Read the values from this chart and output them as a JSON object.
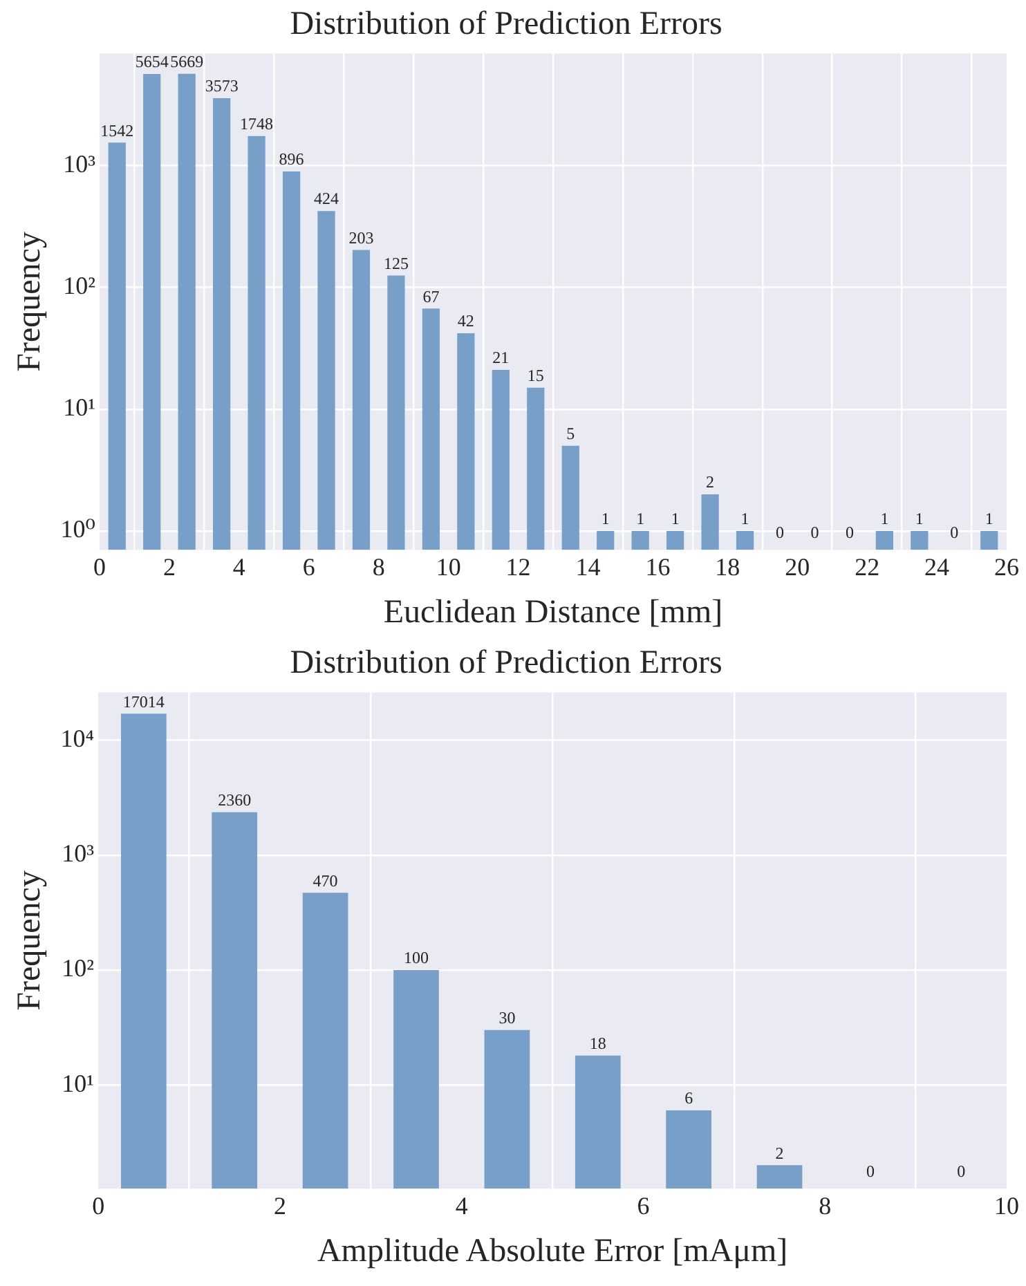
{
  "chart_data": [
    {
      "type": "histogram",
      "title": "Distribution of Prediction Errors",
      "xlabel": "Euclidean Distance [mm]",
      "ylabel": "Frequency",
      "bins": [
        0,
        1,
        2,
        3,
        4,
        5,
        6,
        7,
        8,
        9,
        10,
        11,
        12,
        13,
        14,
        15,
        16,
        17,
        18,
        19,
        20,
        21,
        22,
        23,
        24,
        25,
        26
      ],
      "values": [
        1542,
        5654,
        5669,
        3573,
        1748,
        896,
        424,
        203,
        125,
        67,
        42,
        21,
        15,
        5,
        1,
        1,
        1,
        2,
        1,
        null,
        null,
        null,
        1,
        1,
        null,
        1
      ],
      "value_labels": [
        "1542",
        "5654",
        "5669",
        "3573",
        "1748",
        "896",
        "424",
        "203",
        "125",
        "67",
        "42",
        "21",
        "15",
        "5",
        "1",
        "1",
        "1",
        "2",
        "1",
        "0",
        "0",
        "0",
        "1",
        "1",
        "0",
        "1"
      ],
      "color": "#779fc8",
      "log": "y",
      "grid": true,
      "xlim": [
        0,
        26
      ],
      "xticks": [
        0,
        2,
        4,
        6,
        8,
        10,
        12,
        14,
        16,
        18,
        20,
        22,
        24,
        26
      ],
      "ylim": [
        0.71,
        8300
      ],
      "yticks": [
        {
          "value": 1,
          "label": "10⁰"
        },
        {
          "value": 10,
          "label": "10¹"
        },
        {
          "value": 100,
          "label": "10²"
        },
        {
          "value": 1000,
          "label": "10³"
        }
      ]
    },
    {
      "type": "histogram",
      "title": "Distribution of Prediction Errors",
      "xlabel": "Amplitude Absolute Error [mAμm]",
      "ylabel": "Frequency",
      "bins": [
        0,
        1,
        2,
        3,
        4,
        5,
        6,
        7,
        8,
        9,
        10
      ],
      "values": [
        17014,
        2360,
        470,
        100,
        30,
        18,
        6,
        2,
        null,
        null
      ],
      "value_labels": [
        "17014",
        "2360",
        "470",
        "100",
        "30",
        "18",
        "6",
        "2",
        "0",
        "0"
      ],
      "color": "#779fc8",
      "log": "y",
      "grid": true,
      "xlim": [
        0,
        10
      ],
      "xticks": [
        0,
        2,
        4,
        6,
        8,
        10
      ],
      "ylim": [
        1.25,
        26000
      ],
      "yticks": [
        {
          "value": 10,
          "label": "10¹"
        },
        {
          "value": 100,
          "label": "10²"
        },
        {
          "value": 1000,
          "label": "10³"
        },
        {
          "value": 10000,
          "label": "10⁴"
        }
      ]
    }
  ]
}
